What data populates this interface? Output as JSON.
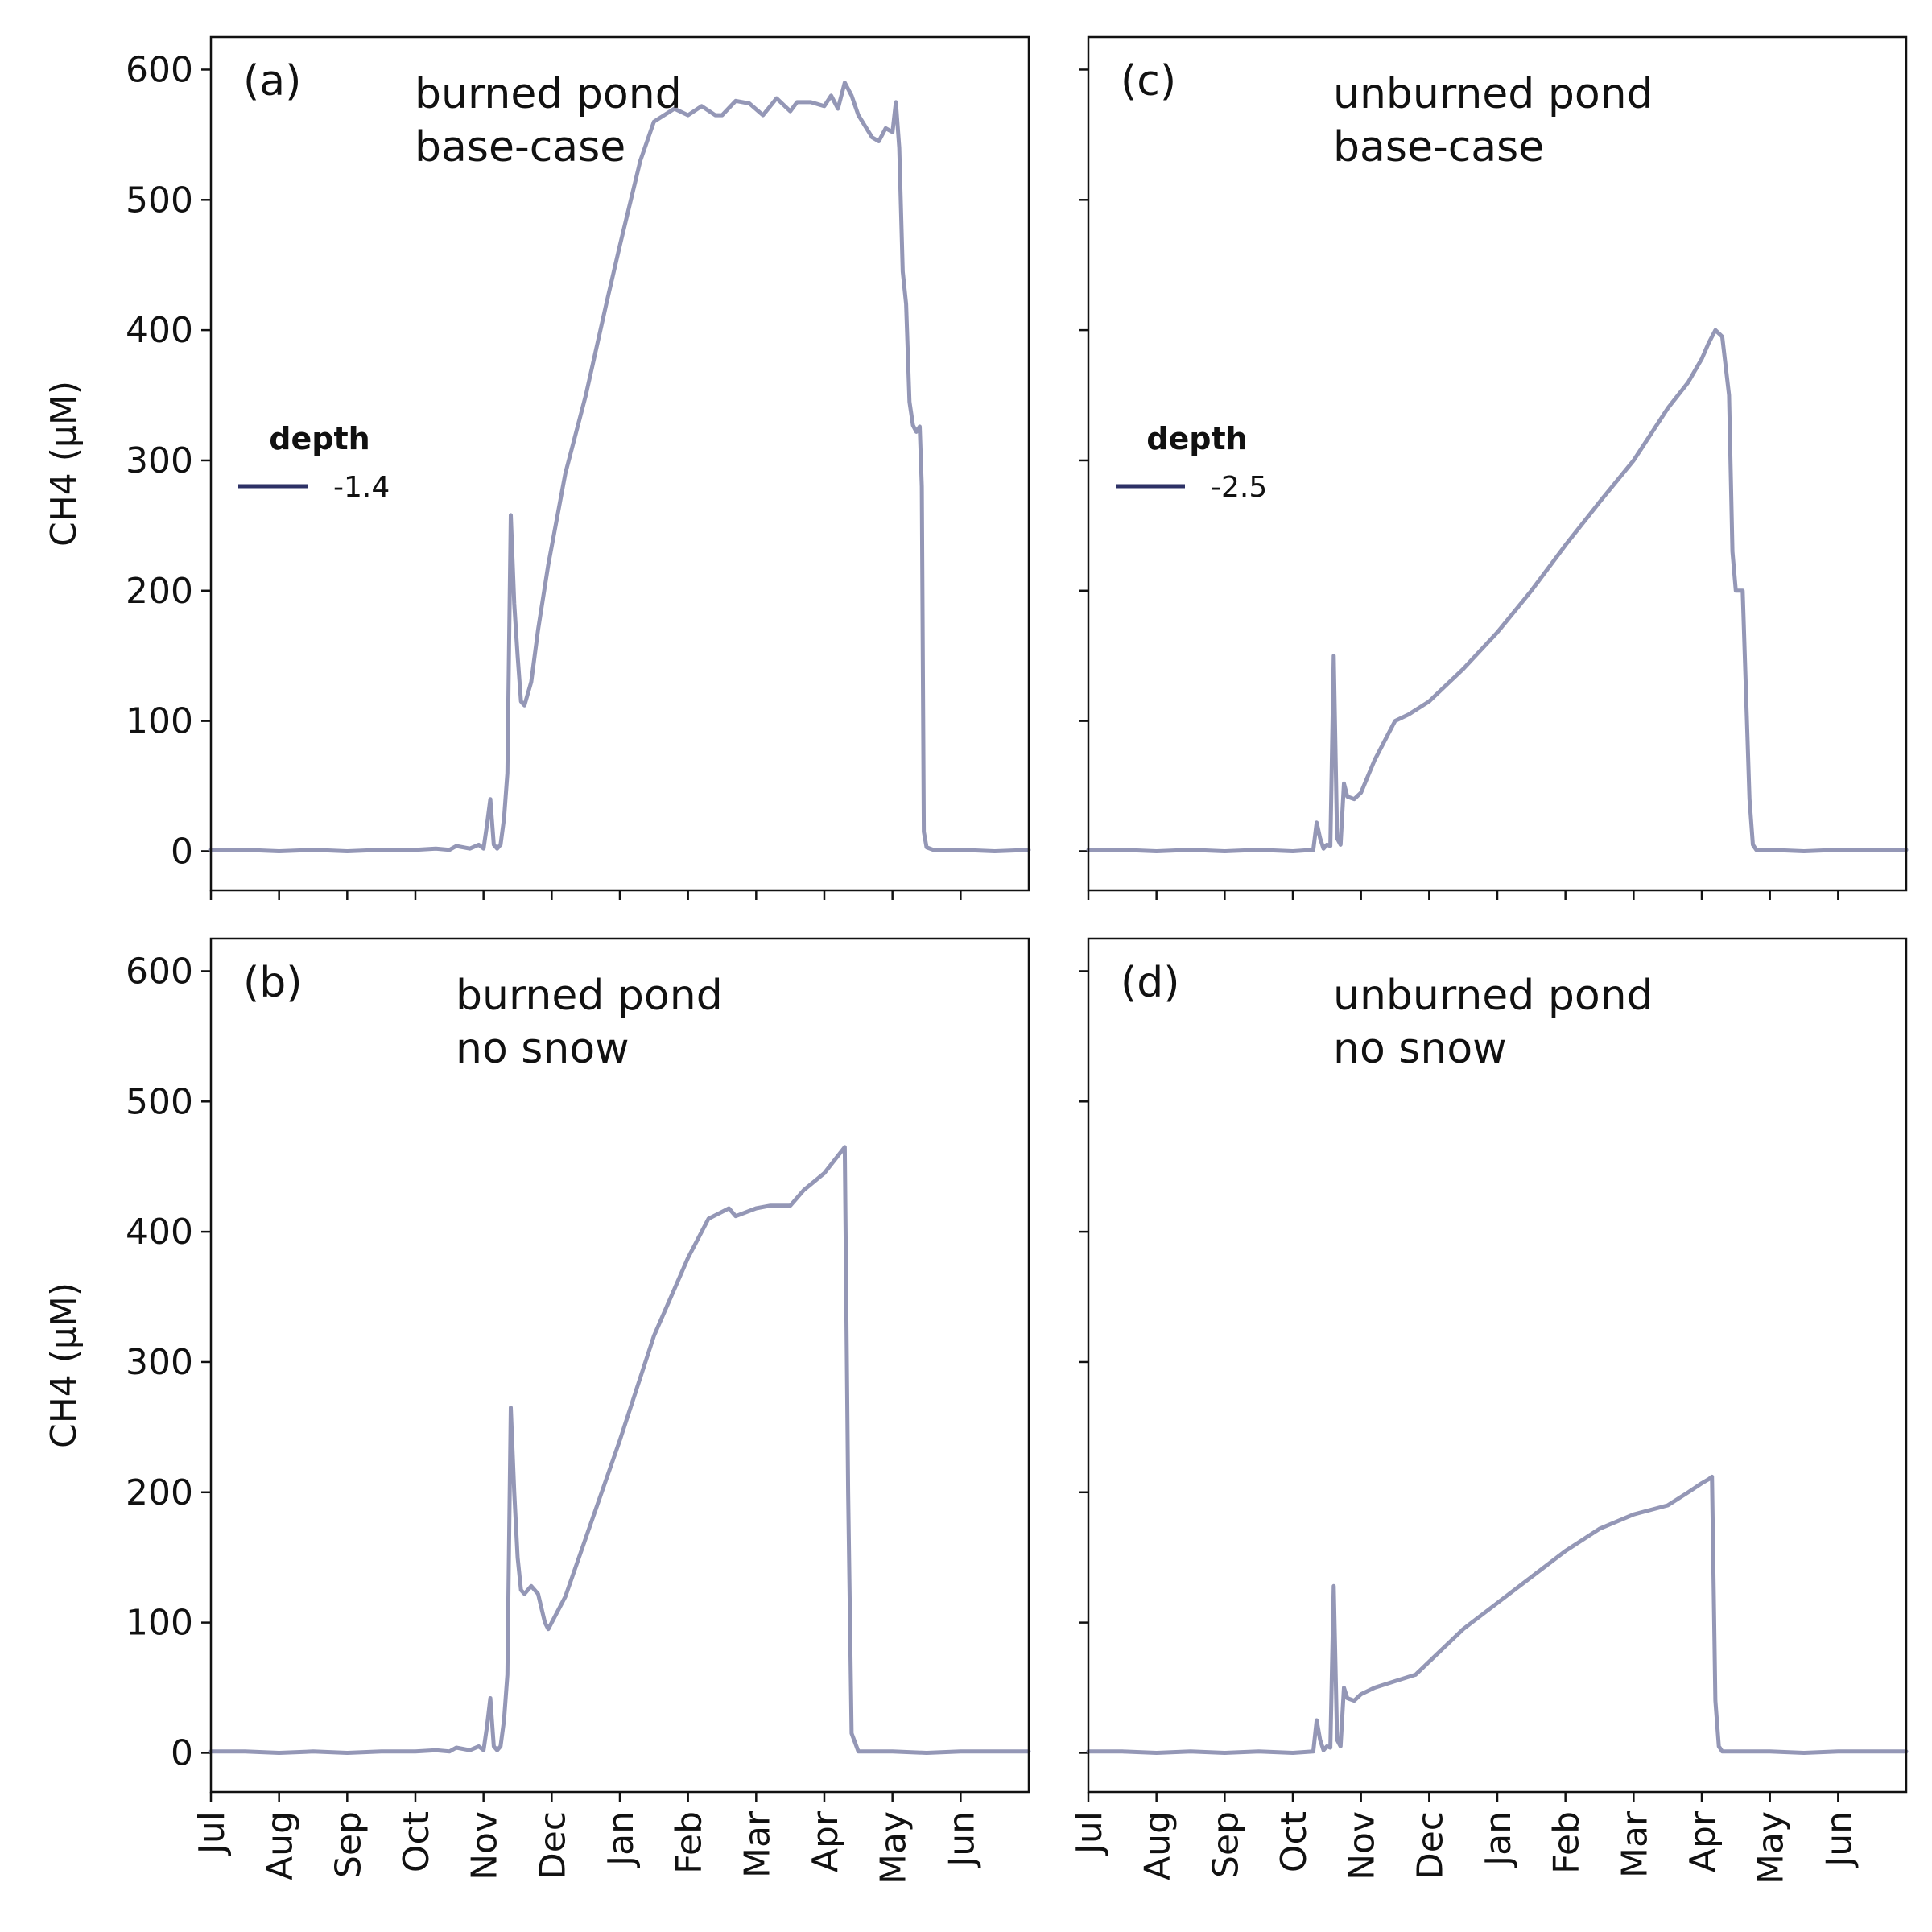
{
  "chart_data": [
    {
      "type": "line",
      "panel_label": "(a)",
      "title_lines": [
        "burned pond",
        "base-case"
      ],
      "ylabel": "CH4 (μM)",
      "ylim": [
        -30,
        625
      ],
      "yticks": [
        "0",
        "100",
        "200",
        "300",
        "400",
        "500",
        "600"
      ],
      "xlabels": [
        "Jul",
        "Aug",
        "Sep",
        "Oct",
        "Nov",
        "Dec",
        "Jan",
        "Feb",
        "Mar",
        "Apr",
        "May",
        "Jun"
      ],
      "show_ytick_labels": true,
      "show_xtick_labels": false,
      "legend": {
        "title": "depth",
        "entries": [
          "-1.4"
        ],
        "placement": "center-left"
      },
      "series_color": "#9497b6",
      "series": [
        {
          "name": "-1.4",
          "points": [
            [
              0,
              1
            ],
            [
              0.5,
              1
            ],
            [
              1,
              0
            ],
            [
              1.5,
              1
            ],
            [
              2,
              0
            ],
            [
              2.5,
              1
            ],
            [
              3,
              1
            ],
            [
              3.3,
              2
            ],
            [
              3.5,
              1
            ],
            [
              3.6,
              4
            ],
            [
              3.8,
              2
            ],
            [
              3.93,
              5
            ],
            [
              4.0,
              2
            ],
            [
              4.05,
              20
            ],
            [
              4.1,
              40
            ],
            [
              4.15,
              5
            ],
            [
              4.2,
              2
            ],
            [
              4.25,
              5
            ],
            [
              4.3,
              25
            ],
            [
              4.35,
              60
            ],
            [
              4.4,
              258
            ],
            [
              4.45,
              190
            ],
            [
              4.5,
              150
            ],
            [
              4.55,
              115
            ],
            [
              4.6,
              112
            ],
            [
              4.7,
              130
            ],
            [
              4.8,
              170
            ],
            [
              4.95,
              220
            ],
            [
              5.2,
              290
            ],
            [
              5.5,
              350
            ],
            [
              5.8,
              420
            ],
            [
              6.0,
              465
            ],
            [
              6.3,
              530
            ],
            [
              6.5,
              560
            ],
            [
              6.8,
              570
            ],
            [
              7.0,
              565
            ],
            [
              7.2,
              572
            ],
            [
              7.4,
              565
            ],
            [
              7.5,
              565
            ],
            [
              7.7,
              576
            ],
            [
              7.9,
              574
            ],
            [
              8.1,
              565
            ],
            [
              8.3,
              578
            ],
            [
              8.5,
              568
            ],
            [
              8.6,
              575
            ],
            [
              8.8,
              575
            ],
            [
              9.0,
              572
            ],
            [
              9.1,
              580
            ],
            [
              9.2,
              570
            ],
            [
              9.3,
              590
            ],
            [
              9.4,
              580
            ],
            [
              9.5,
              565
            ],
            [
              9.7,
              548
            ],
            [
              9.8,
              545
            ],
            [
              9.9,
              555
            ],
            [
              10.0,
              552
            ],
            [
              10.05,
              575
            ],
            [
              10.1,
              540
            ],
            [
              10.15,
              445
            ],
            [
              10.2,
              420
            ],
            [
              10.25,
              345
            ],
            [
              10.3,
              327
            ],
            [
              10.35,
              322
            ],
            [
              10.4,
              326
            ],
            [
              10.43,
              280
            ],
            [
              10.46,
              15
            ],
            [
              10.5,
              3
            ],
            [
              10.6,
              1
            ],
            [
              11,
              1
            ],
            [
              11.5,
              0
            ],
            [
              12,
              1
            ]
          ]
        }
      ]
    },
    {
      "type": "line",
      "panel_label": "(b)",
      "title_lines": [
        "burned pond",
        "no snow"
      ],
      "ylabel": "CH4 (μM)",
      "ylim": [
        -30,
        625
      ],
      "yticks": [
        "0",
        "100",
        "200",
        "300",
        "400",
        "500",
        "600"
      ],
      "xlabels": [
        "Jul",
        "Aug",
        "Sep",
        "Oct",
        "Nov",
        "Dec",
        "Jan",
        "Feb",
        "Mar",
        "Apr",
        "May",
        "Jun"
      ],
      "show_ytick_labels": true,
      "show_xtick_labels": true,
      "legend": null,
      "series_color": "#9497b6",
      "series": [
        {
          "name": "",
          "points": [
            [
              0,
              1
            ],
            [
              0.5,
              1
            ],
            [
              1,
              0
            ],
            [
              1.5,
              1
            ],
            [
              2,
              0
            ],
            [
              2.5,
              1
            ],
            [
              3,
              1
            ],
            [
              3.3,
              2
            ],
            [
              3.5,
              1
            ],
            [
              3.6,
              4
            ],
            [
              3.8,
              2
            ],
            [
              3.93,
              5
            ],
            [
              4.0,
              2
            ],
            [
              4.05,
              20
            ],
            [
              4.1,
              42
            ],
            [
              4.15,
              5
            ],
            [
              4.2,
              2
            ],
            [
              4.25,
              5
            ],
            [
              4.3,
              25
            ],
            [
              4.35,
              60
            ],
            [
              4.4,
              265
            ],
            [
              4.45,
              200
            ],
            [
              4.5,
              150
            ],
            [
              4.55,
              125
            ],
            [
              4.6,
              122
            ],
            [
              4.7,
              128
            ],
            [
              4.8,
              122
            ],
            [
              4.9,
              100
            ],
            [
              4.95,
              95
            ],
            [
              5.2,
              120
            ],
            [
              5.5,
              165
            ],
            [
              6.0,
              240
            ],
            [
              6.5,
              320
            ],
            [
              7.0,
              380
            ],
            [
              7.3,
              410
            ],
            [
              7.6,
              418
            ],
            [
              7.7,
              412
            ],
            [
              8.0,
              418
            ],
            [
              8.2,
              420
            ],
            [
              8.5,
              420
            ],
            [
              8.7,
              432
            ],
            [
              9.0,
              445
            ],
            [
              9.3,
              465
            ],
            [
              9.35,
              200
            ],
            [
              9.4,
              15
            ],
            [
              9.5,
              1
            ],
            [
              10,
              1
            ],
            [
              10.5,
              0
            ],
            [
              11,
              1
            ],
            [
              11.5,
              1
            ],
            [
              12,
              1
            ]
          ]
        }
      ]
    },
    {
      "type": "line",
      "panel_label": "(c)",
      "title_lines": [
        "unburned pond",
        "base-case"
      ],
      "ylabel": "",
      "ylim": [
        -30,
        625
      ],
      "yticks": [
        "0",
        "100",
        "200",
        "300",
        "400",
        "500",
        "600"
      ],
      "xlabels": [
        "Jul",
        "Aug",
        "Sep",
        "Oct",
        "Nov",
        "Dec",
        "Jan",
        "Feb",
        "Mar",
        "Apr",
        "May",
        "Jun"
      ],
      "show_ytick_labels": false,
      "show_xtick_labels": false,
      "legend": {
        "title": "depth",
        "entries": [
          "-2.5"
        ],
        "placement": "center-left"
      },
      "series_color": "#9497b6",
      "series": [
        {
          "name": "-2.5",
          "points": [
            [
              0,
              1
            ],
            [
              0.5,
              1
            ],
            [
              1,
              0
            ],
            [
              1.5,
              1
            ],
            [
              2,
              0
            ],
            [
              2.5,
              1
            ],
            [
              3,
              0
            ],
            [
              3.3,
              1
            ],
            [
              3.35,
              22
            ],
            [
              3.4,
              10
            ],
            [
              3.45,
              2
            ],
            [
              3.5,
              5
            ],
            [
              3.55,
              4
            ],
            [
              3.6,
              150
            ],
            [
              3.65,
              10
            ],
            [
              3.7,
              5
            ],
            [
              3.75,
              52
            ],
            [
              3.8,
              42
            ],
            [
              3.9,
              40
            ],
            [
              4.0,
              45
            ],
            [
              4.2,
              70
            ],
            [
              4.4,
              90
            ],
            [
              4.5,
              100
            ],
            [
              4.7,
              105
            ],
            [
              5.0,
              115
            ],
            [
              5.5,
              140
            ],
            [
              6.0,
              168
            ],
            [
              6.5,
              200
            ],
            [
              7.0,
              235
            ],
            [
              7.5,
              268
            ],
            [
              8.0,
              300
            ],
            [
              8.5,
              340
            ],
            [
              8.8,
              360
            ],
            [
              9.0,
              378
            ],
            [
              9.1,
              390
            ],
            [
              9.2,
              400
            ],
            [
              9.3,
              395
            ],
            [
              9.4,
              350
            ],
            [
              9.45,
              230
            ],
            [
              9.5,
              200
            ],
            [
              9.6,
              200
            ],
            [
              9.7,
              40
            ],
            [
              9.75,
              5
            ],
            [
              9.8,
              1
            ],
            [
              10,
              1
            ],
            [
              10.5,
              0
            ],
            [
              11,
              1
            ],
            [
              11.5,
              1
            ],
            [
              12,
              1
            ]
          ]
        }
      ]
    },
    {
      "type": "line",
      "panel_label": "(d)",
      "title_lines": [
        "unburned pond",
        "no snow"
      ],
      "ylabel": "",
      "ylim": [
        -30,
        625
      ],
      "yticks": [
        "0",
        "100",
        "200",
        "300",
        "400",
        "500",
        "600"
      ],
      "xlabels": [
        "Jul",
        "Aug",
        "Sep",
        "Oct",
        "Nov",
        "Dec",
        "Jan",
        "Feb",
        "Mar",
        "Apr",
        "May",
        "Jun"
      ],
      "show_ytick_labels": false,
      "show_xtick_labels": true,
      "legend": null,
      "series_color": "#9497b6",
      "series": [
        {
          "name": "",
          "points": [
            [
              0,
              1
            ],
            [
              0.5,
              1
            ],
            [
              1,
              0
            ],
            [
              1.5,
              1
            ],
            [
              2,
              0
            ],
            [
              2.5,
              1
            ],
            [
              3,
              0
            ],
            [
              3.3,
              1
            ],
            [
              3.35,
              25
            ],
            [
              3.4,
              10
            ],
            [
              3.45,
              2
            ],
            [
              3.5,
              5
            ],
            [
              3.55,
              4
            ],
            [
              3.6,
              128
            ],
            [
              3.65,
              10
            ],
            [
              3.7,
              5
            ],
            [
              3.75,
              50
            ],
            [
              3.8,
              42
            ],
            [
              3.9,
              40
            ],
            [
              4.0,
              45
            ],
            [
              4.2,
              50
            ],
            [
              4.5,
              55
            ],
            [
              4.8,
              60
            ],
            [
              5.0,
              70
            ],
            [
              5.5,
              95
            ],
            [
              6.0,
              115
            ],
            [
              6.5,
              135
            ],
            [
              7.0,
              155
            ],
            [
              7.5,
              172
            ],
            [
              8.0,
              183
            ],
            [
              8.5,
              190
            ],
            [
              8.8,
              200
            ],
            [
              9.0,
              207
            ],
            [
              9.1,
              210
            ],
            [
              9.15,
              212
            ],
            [
              9.2,
              40
            ],
            [
              9.25,
              5
            ],
            [
              9.3,
              1
            ],
            [
              9.5,
              1
            ],
            [
              10,
              1
            ],
            [
              10.5,
              0
            ],
            [
              11,
              1
            ],
            [
              11.5,
              1
            ],
            [
              12,
              1
            ]
          ]
        }
      ]
    }
  ]
}
